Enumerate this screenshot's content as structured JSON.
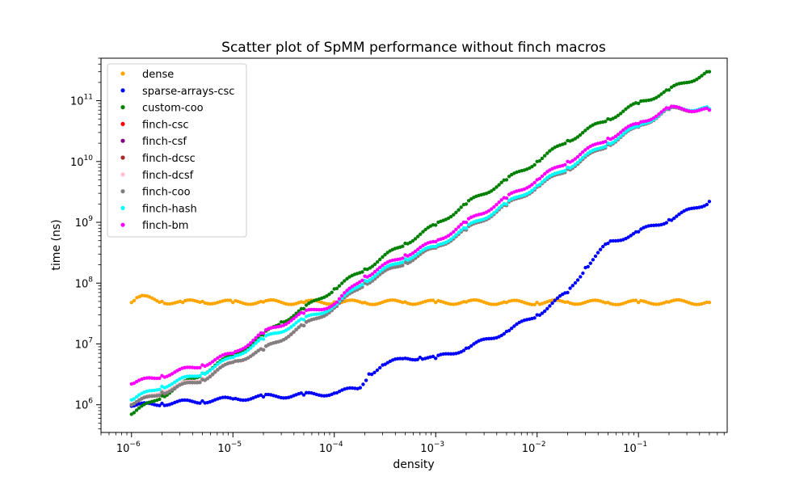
{
  "chart_data": {
    "type": "scatter",
    "title": "Scatter plot of SpMM performance without finch macros",
    "xlabel": "density",
    "ylabel": "time (ns)",
    "xscale": "log",
    "yscale": "log",
    "xlim": [
      5e-07,
      0.75
    ],
    "ylim": [
      350000.0,
      500000000000.0
    ],
    "legend_position": "top-left",
    "x_ticks": [
      {
        "value": 1e-06,
        "base": "10",
        "exp": "−6"
      },
      {
        "value": 1e-05,
        "base": "10",
        "exp": "−5"
      },
      {
        "value": 0.0001,
        "base": "10",
        "exp": "−4"
      },
      {
        "value": 0.001,
        "base": "10",
        "exp": "−3"
      },
      {
        "value": 0.01,
        "base": "10",
        "exp": "−2"
      },
      {
        "value": 0.1,
        "base": "10",
        "exp": "−1"
      }
    ],
    "y_ticks": [
      {
        "value": 1000000.0,
        "base": "10",
        "exp": "6"
      },
      {
        "value": 10000000.0,
        "base": "10",
        "exp": "7"
      },
      {
        "value": 100000000.0,
        "base": "10",
        "exp": "8"
      },
      {
        "value": 1000000000.0,
        "base": "10",
        "exp": "9"
      },
      {
        "value": 10000000000.0,
        "base": "10",
        "exp": "10"
      },
      {
        "value": 100000000000.0,
        "base": "10",
        "exp": "11"
      }
    ],
    "series": [
      {
        "name": "dense",
        "color": "#ffa500",
        "x": [
          1e-06,
          1.2e-06,
          2e-06,
          3.2e-06,
          5e-06,
          1e-05,
          2e-05,
          5e-05,
          0.0001,
          0.0002,
          0.0005,
          0.001,
          0.002,
          0.005,
          0.01,
          0.02,
          0.05,
          0.1,
          0.2,
          0.5
        ],
        "y": [
          48000000.0,
          60000000.0,
          50000000.0,
          48000000.0,
          50000000.0,
          48000000.0,
          49000000.0,
          48000000.0,
          49000000.0,
          48000000.0,
          49000000.0,
          48000000.0,
          49000000.0,
          48000000.0,
          48000000.0,
          49000000.0,
          48000000.0,
          48000000.0,
          49000000.0,
          48000000.0
        ]
      },
      {
        "name": "sparse-arrays-csc",
        "color": "#0000ff",
        "x": [
          1e-06,
          2e-06,
          5e-06,
          1e-05,
          2e-05,
          5e-05,
          0.0001,
          0.00018,
          0.00022,
          0.0003,
          0.0005,
          0.0007,
          0.001,
          0.002,
          0.005,
          0.01,
          0.02,
          0.03,
          0.05,
          0.1,
          0.2,
          0.5
        ],
        "y": [
          950000.0,
          1050000.0,
          1150000.0,
          1250000.0,
          1350000.0,
          1450000.0,
          1550000.0,
          1900000.0,
          3200000.0,
          4500000.0,
          5800000.0,
          6000000.0,
          5800000.0,
          8500000.0,
          16000000.0,
          30000000.0,
          70000000.0,
          180000000.0,
          450000000.0,
          700000000.0,
          1100000000.0,
          2200000000.0
        ]
      },
      {
        "name": "custom-coo",
        "color": "#008000",
        "x": [
          1e-06,
          2e-06,
          5e-06,
          1e-05,
          2e-05,
          3e-05,
          5e-05,
          0.0001,
          0.0002,
          0.0005,
          0.001,
          0.002,
          0.005,
          0.01,
          0.02,
          0.05,
          0.1,
          0.2,
          0.5
        ],
        "y": [
          700000.0,
          1400000.0,
          3300000.0,
          6500000.0,
          14000000.0,
          23000000.0,
          38000000.0,
          80000000.0,
          170000000.0,
          450000000.0,
          900000000.0,
          2000000000.0,
          5000000000.0,
          10000000000.0,
          22000000000.0,
          50000000000.0,
          90000000000.0,
          150000000000.0,
          300000000000.0
        ]
      },
      {
        "name": "finch-csc",
        "color": "#ff0000",
        "x": [
          1e-06,
          2e-06,
          5e-06,
          1e-05,
          2e-05,
          5e-05,
          0.0001,
          0.0002,
          0.0005,
          0.001,
          0.002,
          0.005,
          0.01,
          0.02,
          0.05,
          0.1,
          0.2,
          0.5
        ],
        "y": [
          1000000.0,
          1600000.0,
          2600000.0,
          5000000.0,
          8000000.0,
          20000000.0,
          39000000.0,
          100000000.0,
          220000000.0,
          380000000.0,
          750000000.0,
          1900000000.0,
          3800000000.0,
          7500000000.0,
          19000000000.0,
          37000000000.0,
          72000000000.0,
          72000000000.0
        ]
      },
      {
        "name": "finch-csf",
        "color": "#800080",
        "x": [
          1e-06,
          2e-06,
          5e-06,
          1e-05,
          2e-05,
          5e-05,
          0.0001,
          0.0002,
          0.0005,
          0.001,
          0.002,
          0.005,
          0.01,
          0.02,
          0.05,
          0.1,
          0.2,
          0.5
        ],
        "y": [
          1000000.0,
          1600000.0,
          2600000.0,
          5000000.0,
          8000000.0,
          20000000.0,
          39000000.0,
          100000000.0,
          220000000.0,
          380000000.0,
          750000000.0,
          1900000000.0,
          3800000000.0,
          7500000000.0,
          19000000000.0,
          37000000000.0,
          72000000000.0,
          72000000000.0
        ]
      },
      {
        "name": "finch-dcsc",
        "color": "#a52a2a",
        "x": [
          1e-06,
          2e-06,
          5e-06,
          1e-05,
          2e-05,
          5e-05,
          0.0001,
          0.0002,
          0.0005,
          0.001,
          0.002,
          0.005,
          0.01,
          0.02,
          0.05,
          0.1,
          0.2,
          0.5
        ],
        "y": [
          1000000.0,
          1600000.0,
          2600000.0,
          5000000.0,
          8000000.0,
          20000000.0,
          39000000.0,
          100000000.0,
          220000000.0,
          380000000.0,
          750000000.0,
          1900000000.0,
          3800000000.0,
          7500000000.0,
          19000000000.0,
          37000000000.0,
          72000000000.0,
          72000000000.0
        ]
      },
      {
        "name": "finch-dcsf",
        "color": "#ffc0cb",
        "x": [
          1e-06,
          2e-06,
          5e-06,
          1e-05,
          2e-05,
          5e-05,
          0.0001,
          0.0002,
          0.0005,
          0.001,
          0.002,
          0.005,
          0.01,
          0.02,
          0.05,
          0.1,
          0.2,
          0.5
        ],
        "y": [
          1000000.0,
          1700000.0,
          2700000.0,
          5000000.0,
          8000000.0,
          20000000.0,
          39000000.0,
          100000000.0,
          220000000.0,
          380000000.0,
          750000000.0,
          1900000000.0,
          3800000000.0,
          7500000000.0,
          19000000000.0,
          37000000000.0,
          72000000000.0,
          72000000000.0
        ]
      },
      {
        "name": "finch-coo",
        "color": "#808080",
        "x": [
          1e-06,
          2e-06,
          5e-06,
          1e-05,
          2e-05,
          5e-05,
          0.0001,
          0.0002,
          0.0005,
          0.001,
          0.002,
          0.005,
          0.01,
          0.02,
          0.05,
          0.1,
          0.2,
          0.5
        ],
        "y": [
          1000000.0,
          1600000.0,
          2600000.0,
          5000000.0,
          8000000.0,
          20000000.0,
          39000000.0,
          100000000.0,
          220000000.0,
          380000000.0,
          750000000.0,
          1900000000.0,
          3800000000.0,
          7500000000.0,
          19000000000.0,
          37000000000.0,
          72000000000.0,
          72000000000.0
        ]
      },
      {
        "name": "finch-hash",
        "color": "#00ffff",
        "x": [
          1e-06,
          2e-06,
          5e-06,
          1e-05,
          2e-05,
          5e-05,
          0.0001,
          0.0002,
          0.0005,
          0.001,
          0.002,
          0.005,
          0.01,
          0.02,
          0.05,
          0.1,
          0.2,
          0.5
        ],
        "y": [
          1200000.0,
          2000000.0,
          3300000.0,
          6000000.0,
          12000000.0,
          25000000.0,
          42000000.0,
          110000000.0,
          250000000.0,
          400000000.0,
          800000000.0,
          2000000000.0,
          4000000000.0,
          8000000000.0,
          20000000000.0,
          38000000000.0,
          74000000000.0,
          74000000000.0
        ]
      },
      {
        "name": "finch-bm",
        "color": "#ff00ff",
        "x": [
          1e-06,
          2e-06,
          5e-06,
          1e-05,
          2e-05,
          5e-05,
          0.0001,
          0.0002,
          0.0005,
          0.001,
          0.002,
          0.005,
          0.01,
          0.02,
          0.05,
          0.1,
          0.2,
          0.5
        ],
        "y": [
          2200000.0,
          3000000.0,
          4500000.0,
          7000000.0,
          15000000.0,
          32000000.0,
          45000000.0,
          130000000.0,
          290000000.0,
          480000000.0,
          1000000000.0,
          2500000000.0,
          5000000000.0,
          10000000000.0,
          24000000000.0,
          42000000000.0,
          75000000000.0,
          70000000000.0
        ]
      }
    ]
  }
}
